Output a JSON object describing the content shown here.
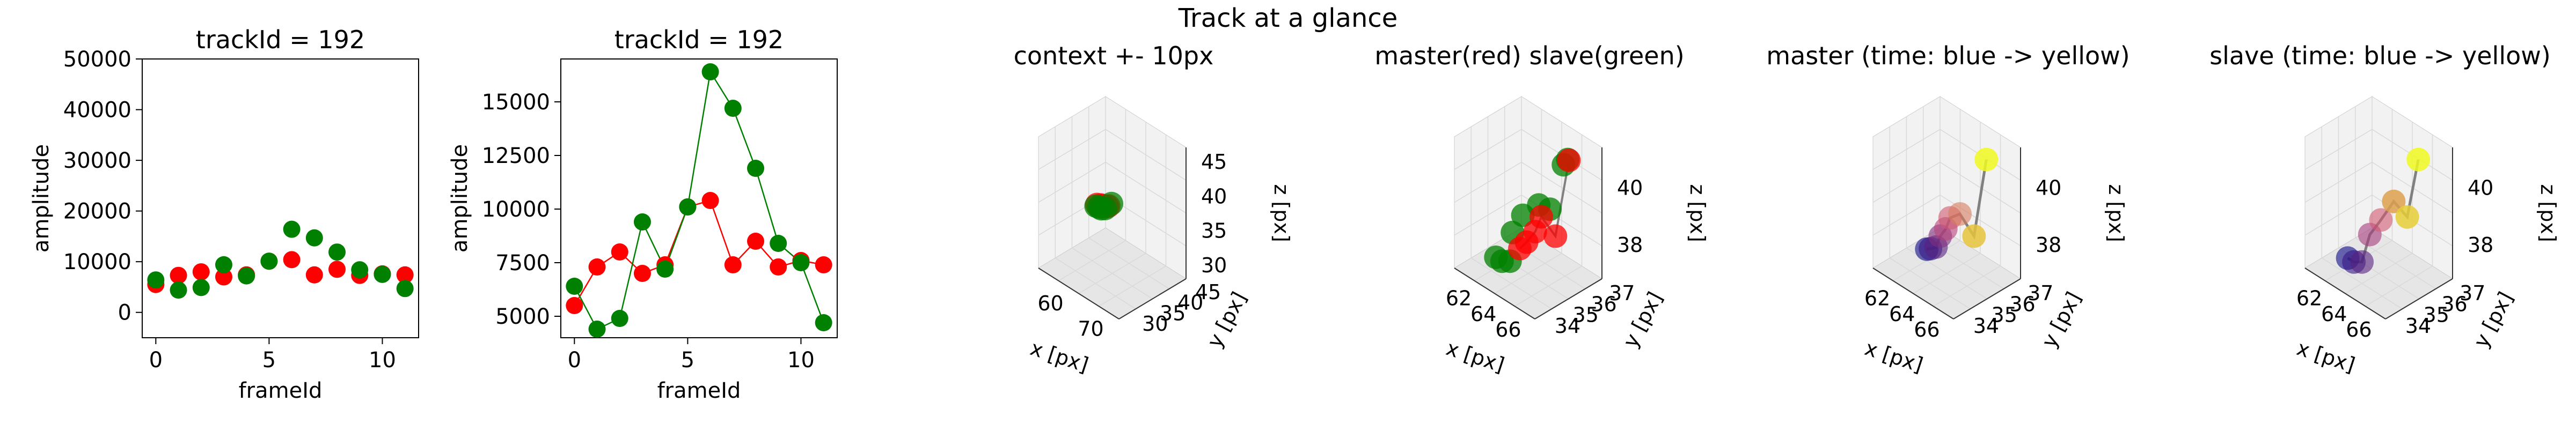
{
  "figure": {
    "suptitle": "Track at a glance"
  },
  "colors": {
    "master": "#ff0000",
    "slave": "#008000",
    "track_line": "#808080",
    "pane": "#f2f2f2",
    "pane_dark": "#e6e6e6",
    "grid": "#d9d9d9",
    "time_blue": "#0d0887",
    "time_yellow": "#f0f921"
  },
  "chart_data": [
    {
      "type": "scatter",
      "title": "trackId = 192",
      "xlabel": "frameId",
      "ylabel": "amplitude",
      "xlim": [
        -0.6,
        11.6
      ],
      "ylim": [
        -5000,
        50000
      ],
      "x_ticks": [
        "0",
        "5",
        "10"
      ],
      "y_ticks": [
        "0",
        "10000",
        "20000",
        "30000",
        "40000",
        "50000"
      ],
      "lines": false,
      "x": [
        0,
        1,
        2,
        3,
        4,
        5,
        6,
        7,
        8,
        9,
        10,
        11
      ],
      "series": [
        {
          "values": [
            5500,
            7300,
            8000,
            7000,
            7400,
            10100,
            10400,
            7400,
            8500,
            7300,
            7600,
            7400
          ]
        },
        {
          "values": [
            6400,
            4400,
            4900,
            9400,
            7200,
            10100,
            16400,
            14700,
            11900,
            8400,
            7500,
            4700
          ]
        }
      ]
    },
    {
      "type": "line",
      "title": "trackId = 192",
      "xlabel": "frameId",
      "ylabel": "amplitude",
      "xlim": [
        -0.6,
        11.6
      ],
      "ylim": [
        4000,
        17000
      ],
      "x_ticks": [
        "0",
        "5",
        "10"
      ],
      "y_ticks": [
        "5000",
        "7500",
        "10000",
        "12500",
        "15000"
      ],
      "lines": true,
      "x": [
        0,
        1,
        2,
        3,
        4,
        5,
        6,
        7,
        8,
        9,
        10,
        11
      ],
      "series": [
        {
          "values": [
            5500,
            7300,
            8000,
            7000,
            7400,
            10100,
            10400,
            7400,
            8500,
            7300,
            7600,
            7400
          ]
        },
        {
          "values": [
            6400,
            4400,
            4900,
            9400,
            7200,
            10100,
            16400,
            14700,
            11900,
            8400,
            7500,
            4700
          ]
        }
      ]
    },
    {
      "type": "scatter3d",
      "title": "context +- 10px",
      "xlabel": "x [px]",
      "ylabel": "y [px]",
      "zlabel": "z [px]",
      "x_ticks": [
        "60",
        "70"
      ],
      "y_ticks": [
        "30",
        "35",
        "40",
        "45"
      ],
      "z_ticks": [
        "30",
        "35",
        "40",
        "45"
      ],
      "points": [
        {
          "x": 62.5,
          "y": 36,
          "z": 37.5,
          "series": "master"
        },
        {
          "x": 63.5,
          "y": 36,
          "z": 37.8,
          "series": "master"
        },
        {
          "x": 64.5,
          "y": 35.5,
          "z": 38.2,
          "series": "master"
        },
        {
          "x": 65.5,
          "y": 35.5,
          "z": 38.5,
          "series": "master"
        },
        {
          "x": 66.3,
          "y": 35,
          "z": 39,
          "series": "master"
        },
        {
          "x": 62.3,
          "y": 36,
          "z": 37.2,
          "series": "slave"
        },
        {
          "x": 63,
          "y": 36,
          "z": 37.3,
          "series": "slave"
        },
        {
          "x": 64,
          "y": 35.5,
          "z": 37.6,
          "series": "slave"
        },
        {
          "x": 65,
          "y": 35.5,
          "z": 38,
          "series": "slave"
        },
        {
          "x": 67,
          "y": 35,
          "z": 39.6,
          "series": "slave"
        }
      ]
    },
    {
      "type": "scatter3d",
      "title": "master(red) slave(green)",
      "xlabel": "x [px]",
      "ylabel": "y [px]",
      "zlabel": "z [px]",
      "x_ticks": [
        "62",
        "64",
        "66"
      ],
      "y_ticks": [
        "34",
        "35",
        "36",
        "37"
      ],
      "z_ticks": [
        "38",
        "40"
      ],
      "points": [
        {
          "x": 62.3,
          "y": 35.2,
          "z": 37.0,
          "series": "slave"
        },
        {
          "x": 62.8,
          "y": 35.2,
          "z": 37.0,
          "series": "slave"
        },
        {
          "x": 63.3,
          "y": 35.3,
          "z": 37.1,
          "series": "slave"
        },
        {
          "x": 63.2,
          "y": 35.5,
          "z": 38.0,
          "series": "slave"
        },
        {
          "x": 63.6,
          "y": 35.8,
          "z": 38.6,
          "series": "slave"
        },
        {
          "x": 64.3,
          "y": 36.2,
          "z": 39.0,
          "series": "slave"
        },
        {
          "x": 65.2,
          "y": 36.2,
          "z": 39.1,
          "series": "slave"
        },
        {
          "x": 66.0,
          "y": 36.4,
          "z": 40.8,
          "series": "slave"
        },
        {
          "x": 66.2,
          "y": 36.5,
          "z": 41.0,
          "series": "slave"
        },
        {
          "x": 63.8,
          "y": 35.5,
          "z": 37.6,
          "series": "master"
        },
        {
          "x": 64.2,
          "y": 35.6,
          "z": 37.9,
          "series": "master"
        },
        {
          "x": 64.6,
          "y": 35.8,
          "z": 38.3,
          "series": "master"
        },
        {
          "x": 64.8,
          "y": 36.0,
          "z": 38.8,
          "series": "master"
        },
        {
          "x": 65.5,
          "y": 36.3,
          "z": 38.2,
          "series": "master"
        },
        {
          "x": 66.3,
          "y": 36.5,
          "z": 41.0,
          "series": "master"
        }
      ]
    },
    {
      "type": "scatter3d",
      "title": "master (time: blue -> yellow)",
      "xlabel": "x [px]",
      "ylabel": "y [px]",
      "zlabel": "z [px]",
      "x_ticks": [
        "62",
        "64",
        "66"
      ],
      "y_ticks": [
        "34",
        "35",
        "36",
        "37"
      ],
      "z_ticks": [
        "38",
        "40"
      ],
      "points": [
        {
          "x": 63.0,
          "y": 35.4,
          "z": 37.4,
          "t": 0
        },
        {
          "x": 63.3,
          "y": 35.4,
          "z": 37.5,
          "t": 0.1
        },
        {
          "x": 63.6,
          "y": 35.5,
          "z": 37.6,
          "t": 0.2
        },
        {
          "x": 63.8,
          "y": 35.6,
          "z": 38.0,
          "t": 0.3
        },
        {
          "x": 64.1,
          "y": 35.7,
          "z": 38.3,
          "t": 0.45
        },
        {
          "x": 64.3,
          "y": 35.8,
          "z": 38.7,
          "t": 0.55
        },
        {
          "x": 64.8,
          "y": 36.0,
          "z": 38.9,
          "t": 0.65
        },
        {
          "x": 65.5,
          "y": 36.3,
          "z": 38.2,
          "t": 0.85
        },
        {
          "x": 66.2,
          "y": 36.5,
          "z": 41.0,
          "t": 1
        }
      ]
    },
    {
      "type": "scatter3d",
      "title": "slave (time: blue -> yellow)",
      "xlabel": "x [px]",
      "ylabel": "y [px]",
      "zlabel": "z [px]",
      "x_ticks": [
        "62",
        "64",
        "66"
      ],
      "y_ticks": [
        "34",
        "35",
        "36",
        "37"
      ],
      "z_ticks": [
        "38",
        "40"
      ],
      "points": [
        {
          "x": 62.4,
          "y": 35.2,
          "z": 37.0,
          "t": 0
        },
        {
          "x": 62.9,
          "y": 35.2,
          "z": 37.0,
          "t": 0.1
        },
        {
          "x": 63.4,
          "y": 35.3,
          "z": 37.1,
          "t": 0.2
        },
        {
          "x": 63.6,
          "y": 35.6,
          "z": 38.0,
          "t": 0.4
        },
        {
          "x": 64.2,
          "y": 35.8,
          "z": 38.6,
          "t": 0.55
        },
        {
          "x": 64.8,
          "y": 36.1,
          "z": 39.3,
          "t": 0.75
        },
        {
          "x": 65.6,
          "y": 36.3,
          "z": 38.9,
          "t": 0.88
        },
        {
          "x": 66.2,
          "y": 36.5,
          "z": 41.0,
          "t": 1
        }
      ]
    }
  ]
}
